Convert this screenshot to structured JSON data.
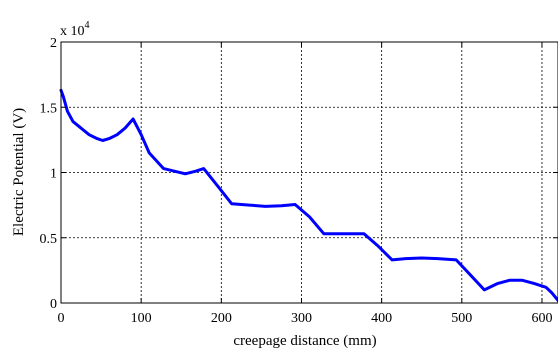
{
  "chart_data": {
    "type": "line",
    "xlabel": "creepage distance (mm)",
    "ylabel": "Electric Potential (V)",
    "y_multiplier_label": "x 10",
    "y_multiplier_exponent": "4",
    "xlim": [
      0,
      620
    ],
    "ylim": [
      0,
      2
    ],
    "x_ticks": [
      0,
      100,
      200,
      300,
      400,
      500,
      600
    ],
    "x_tick_labels": [
      "0",
      "100",
      "200",
      "300",
      "400",
      "500",
      "600"
    ],
    "y_ticks": [
      0,
      0.5,
      1,
      1.5,
      2
    ],
    "y_tick_labels": [
      "0",
      "0.5",
      "1",
      "1.5",
      "2"
    ],
    "grid": true,
    "series": [
      {
        "color": "#0000ff",
        "x": [
          0,
          3,
          8,
          15,
          25,
          35,
          45,
          52,
          60,
          70,
          80,
          90,
          100,
          110,
          128,
          155,
          168,
          178,
          195,
          213,
          235,
          255,
          275,
          292,
          310,
          328,
          350,
          378,
          395,
          413,
          430,
          450,
          470,
          493,
          510,
          528,
          545,
          560,
          575,
          590,
          605,
          612,
          620
        ],
        "y": [
          1.63,
          1.58,
          1.47,
          1.39,
          1.34,
          1.29,
          1.26,
          1.245,
          1.26,
          1.29,
          1.34,
          1.41,
          1.29,
          1.15,
          1.03,
          0.99,
          1.01,
          1.03,
          0.9,
          0.76,
          0.75,
          0.74,
          0.745,
          0.755,
          0.66,
          0.53,
          0.53,
          0.53,
          0.44,
          0.33,
          0.34,
          0.345,
          0.34,
          0.33,
          0.22,
          0.1,
          0.15,
          0.175,
          0.175,
          0.15,
          0.12,
          0.08,
          0.02
        ]
      }
    ]
  }
}
